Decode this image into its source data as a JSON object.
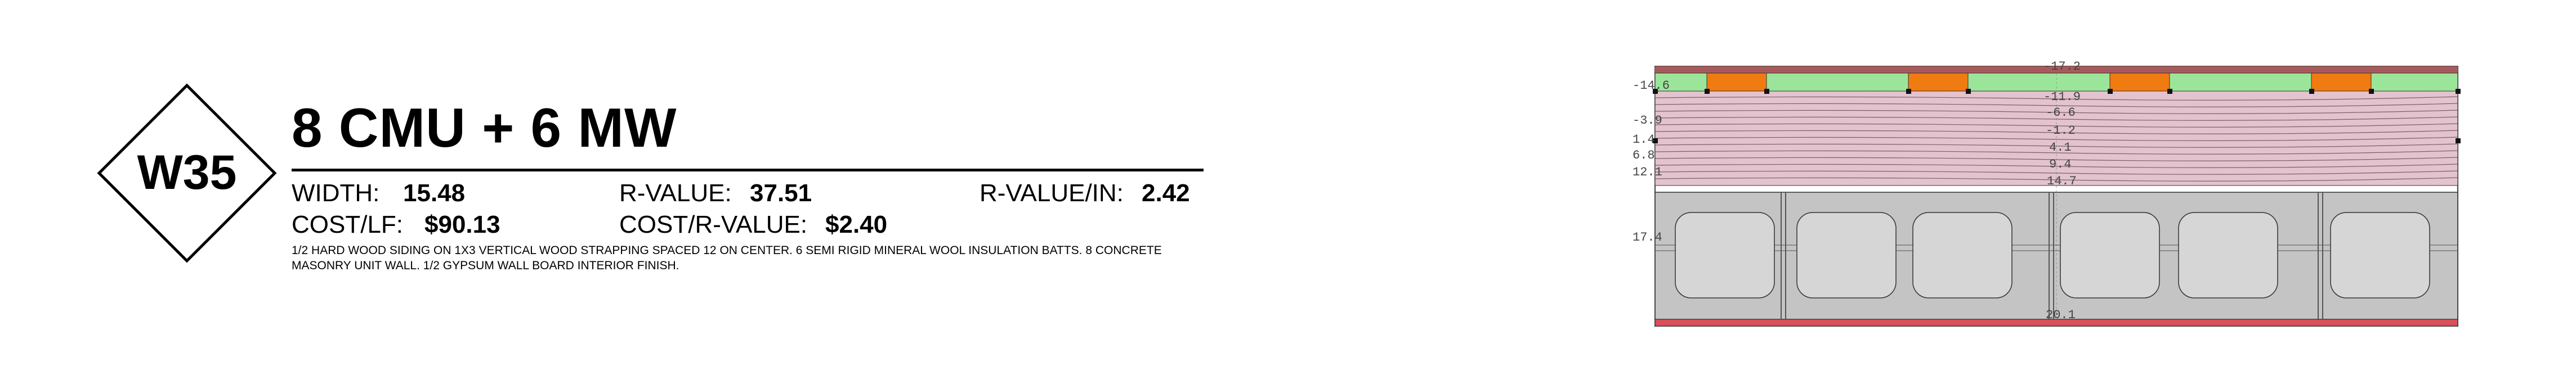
{
  "badge": {
    "code": "W35"
  },
  "title": "8 CMU + 6 MW",
  "stats": {
    "width_label": "WIDTH:",
    "width_value": "15.48",
    "rvalue_label": "R-VALUE:",
    "rvalue_value": "37.51",
    "rvalue_in_label": "R-VALUE/IN:",
    "rvalue_in_value": "2.42",
    "cost_lf_label": "COST/LF:",
    "cost_lf_value": "$90.13",
    "cost_r_label": "COST/R-VALUE:",
    "cost_r_value": "$2.40"
  },
  "description": "1/2 HARD WOOD SIDING ON 1X3 VERTICAL WOOD STRAPPING SPACED 12 ON CENTER. 6 SEMI RIGID MINERAL WOOL INSULATION BATTS. 8 CONCRETE MASONRY UNIT WALL. 1/2 GYPSUM WALL BOARD INTERIOR FINISH.",
  "section": {
    "colors": {
      "siding": "#a85a5a",
      "air_gap": "#9be59b",
      "strapping": "#f07b10",
      "mineral_wool": "#e3c3cd",
      "cmu": "#c4c4c4",
      "gypsum": "#d9505a"
    },
    "left_labels": [
      "-14.6",
      "-3.9",
      "1.4",
      "6.8",
      "12.1",
      "17.4"
    ],
    "center_labels": [
      "-17.2",
      "-11.9",
      "-6.6",
      "-1.2",
      "4.1",
      "9.4",
      "14.7",
      "20.1"
    ]
  }
}
